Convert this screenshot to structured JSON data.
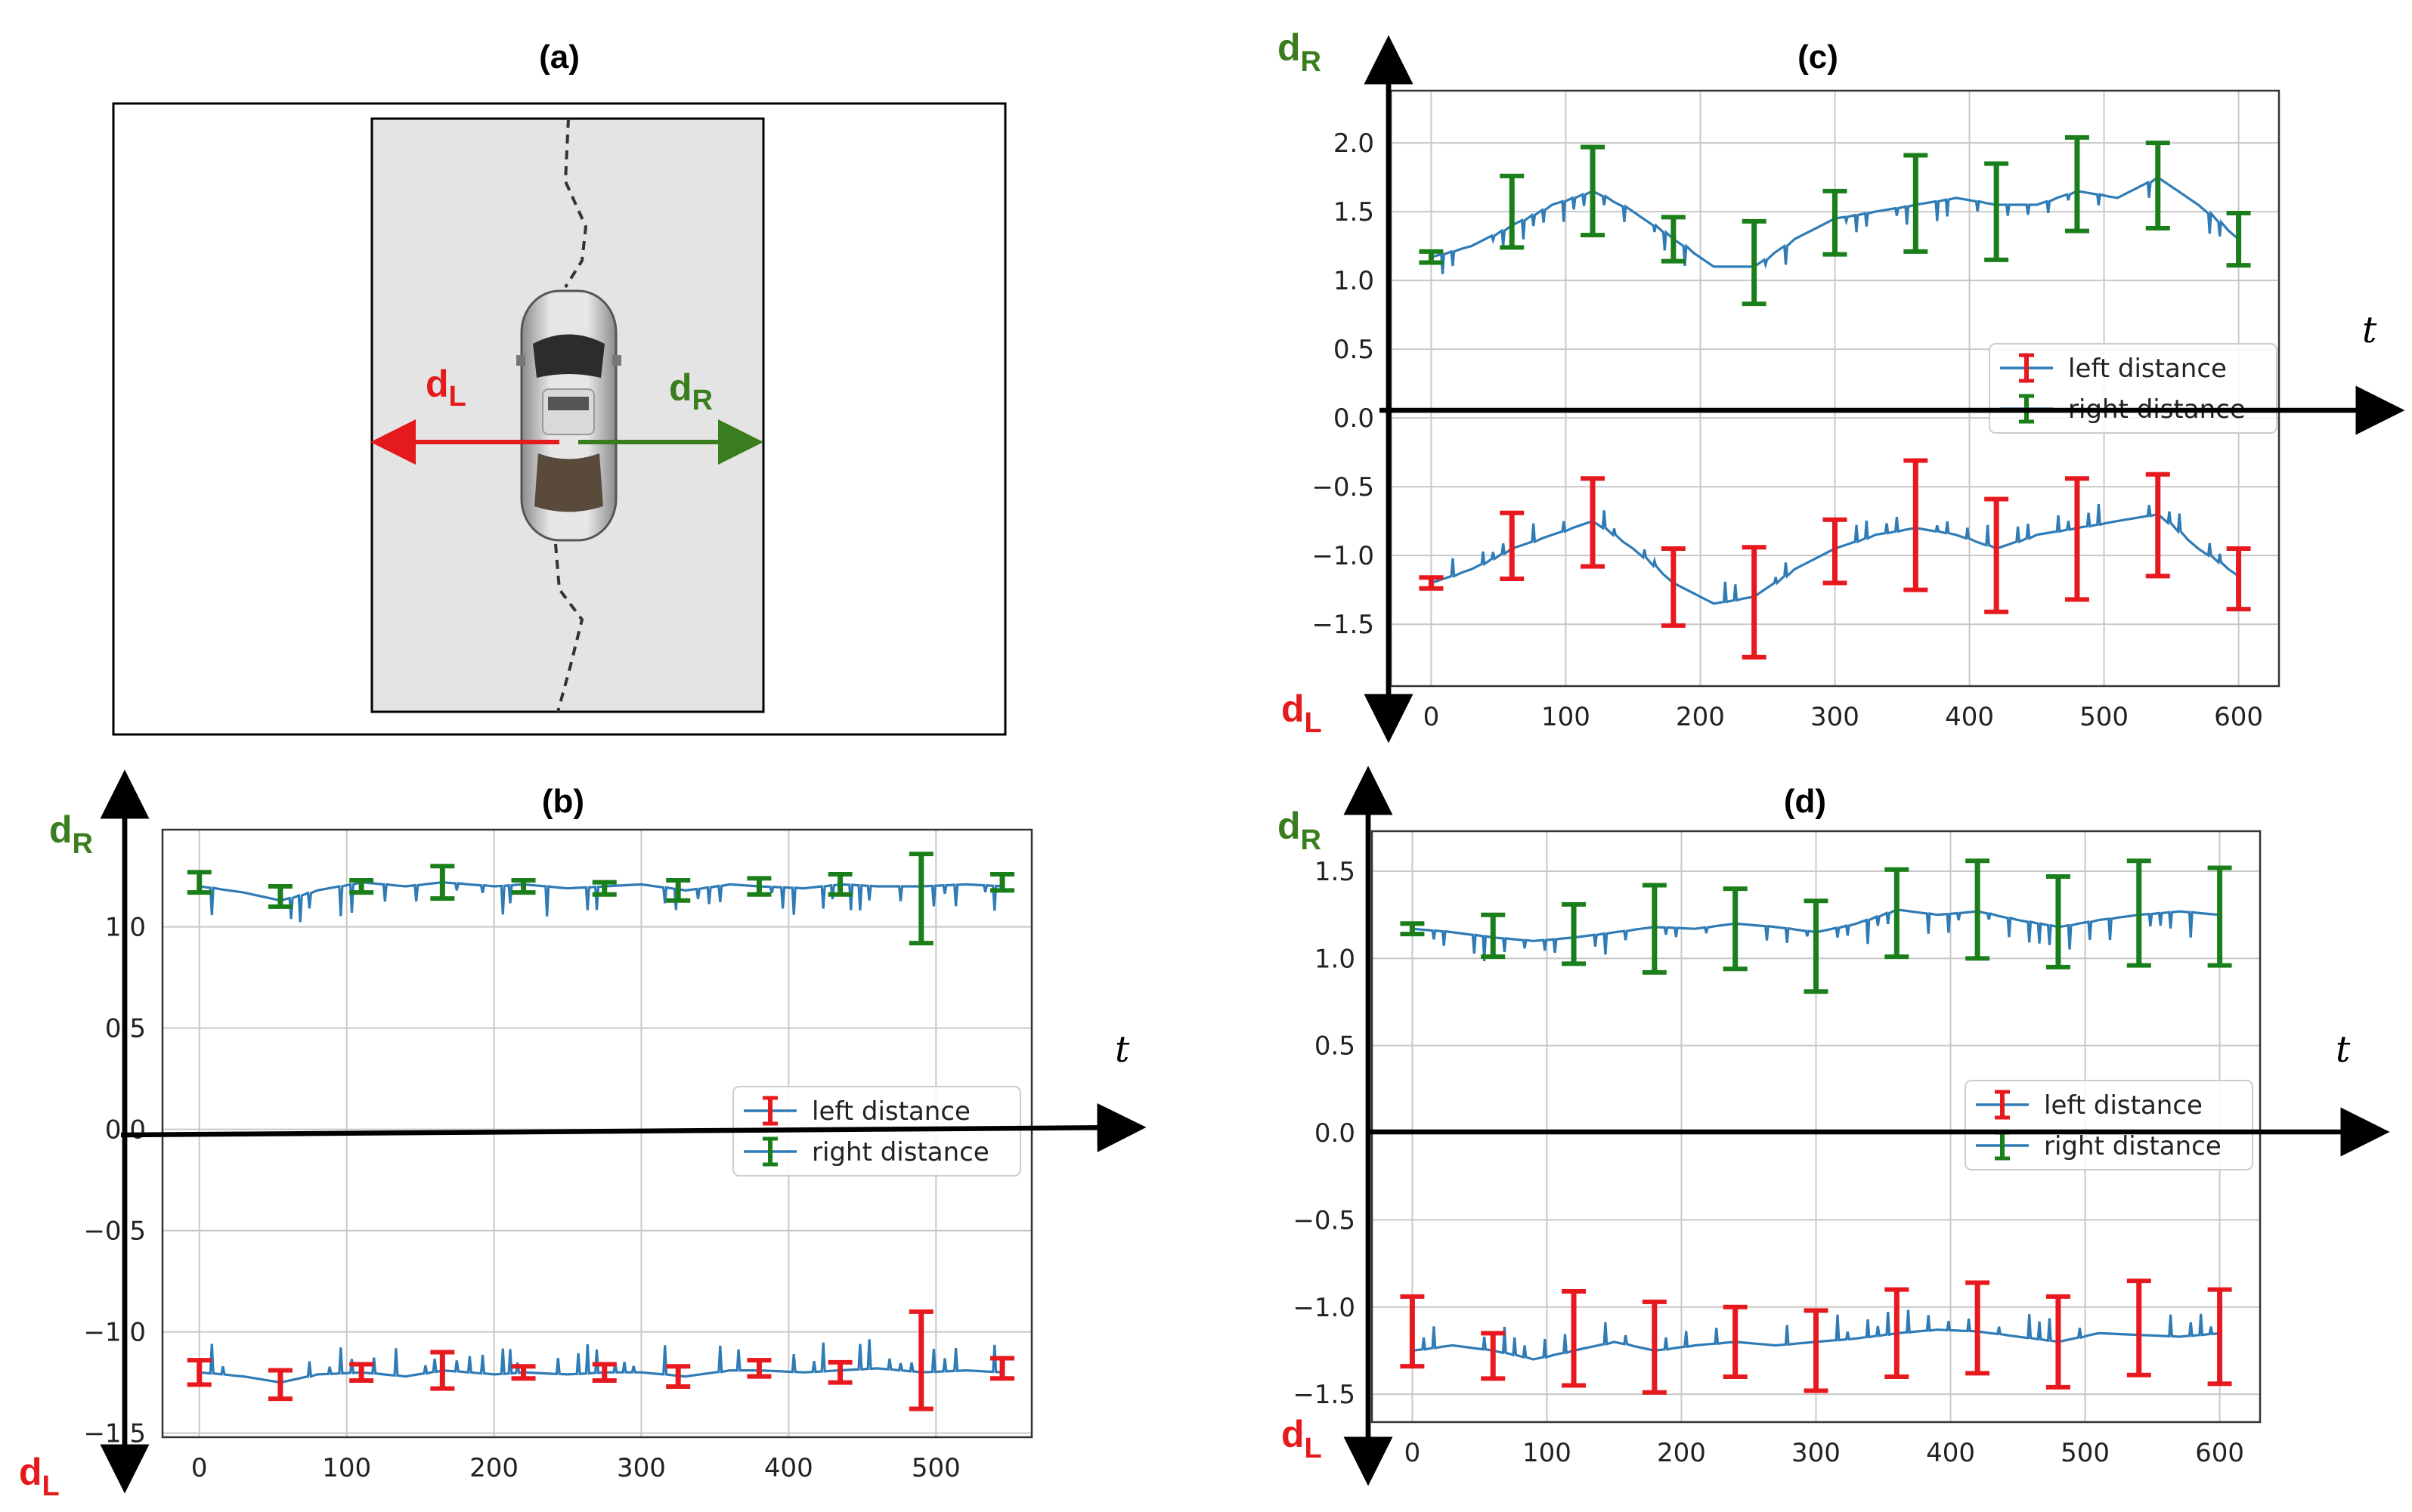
{
  "figure": {
    "panel_a": {
      "label": "(a)",
      "left_label": "d",
      "left_sub": "L",
      "right_label": "d",
      "right_sub": "R",
      "colors": {
        "left": "#e41a1c",
        "right": "#3a7d1e",
        "road": "#e4e4e4"
      }
    },
    "axis_labels": {
      "dR": "d",
      "dR_sub": "R",
      "dL": "d",
      "dL_sub": "L",
      "t": "t"
    },
    "colors": {
      "line": "#2f7bb6",
      "left_err": "#e8191e",
      "right_err": "#1a7f1a",
      "dR": "#3a7d1e",
      "dL": "#e41a1c"
    }
  },
  "chart_data": [
    {
      "id": "b",
      "title": "(b)",
      "type": "line",
      "xlim": [
        -25,
        565
      ],
      "ylim": [
        -1.52,
        1.48
      ],
      "xticks": [
        "0",
        "100",
        "200",
        "300",
        "400",
        "500"
      ],
      "yticks": [
        "1.0",
        "0.5",
        "0.0",
        "−0.5",
        "−1.0",
        "−1.5"
      ],
      "ytick_values": [
        1.0,
        0.5,
        0.0,
        -0.5,
        -1.0,
        -1.5
      ],
      "xtick_values": [
        0,
        100,
        200,
        300,
        400,
        500
      ],
      "legend": [
        "left distance",
        "right distance"
      ],
      "right_line": [
        [
          0,
          1.2
        ],
        [
          30,
          1.17
        ],
        [
          55,
          1.13
        ],
        [
          80,
          1.18
        ],
        [
          110,
          1.22
        ],
        [
          140,
          1.2
        ],
        [
          165,
          1.22
        ],
        [
          200,
          1.2
        ],
        [
          220,
          1.21
        ],
        [
          250,
          1.19
        ],
        [
          275,
          1.2
        ],
        [
          300,
          1.21
        ],
        [
          330,
          1.18
        ],
        [
          360,
          1.21
        ],
        [
          380,
          1.2
        ],
        [
          410,
          1.19
        ],
        [
          435,
          1.21
        ],
        [
          460,
          1.2
        ],
        [
          490,
          1.2
        ],
        [
          520,
          1.21
        ],
        [
          545,
          1.2
        ]
      ],
      "left_line": [
        [
          0,
          -1.2
        ],
        [
          30,
          -1.22
        ],
        [
          55,
          -1.25
        ],
        [
          80,
          -1.21
        ],
        [
          110,
          -1.2
        ],
        [
          140,
          -1.22
        ],
        [
          165,
          -1.19
        ],
        [
          200,
          -1.21
        ],
        [
          220,
          -1.2
        ],
        [
          250,
          -1.21
        ],
        [
          275,
          -1.2
        ],
        [
          300,
          -1.2
        ],
        [
          330,
          -1.22
        ],
        [
          360,
          -1.19
        ],
        [
          380,
          -1.19
        ],
        [
          410,
          -1.2
        ],
        [
          435,
          -1.19
        ],
        [
          460,
          -1.18
        ],
        [
          490,
          -1.2
        ],
        [
          520,
          -1.19
        ],
        [
          545,
          -1.2
        ]
      ],
      "right_err": [
        {
          "x": 0,
          "y": 1.22,
          "e": 0.05
        },
        {
          "x": 55,
          "y": 1.15,
          "e": 0.05
        },
        {
          "x": 110,
          "y": 1.2,
          "e": 0.03
        },
        {
          "x": 165,
          "y": 1.22,
          "e": 0.08
        },
        {
          "x": 220,
          "y": 1.2,
          "e": 0.03
        },
        {
          "x": 275,
          "y": 1.19,
          "e": 0.03
        },
        {
          "x": 325,
          "y": 1.18,
          "e": 0.05
        },
        {
          "x": 380,
          "y": 1.2,
          "e": 0.04
        },
        {
          "x": 435,
          "y": 1.21,
          "e": 0.05
        },
        {
          "x": 490,
          "y": 1.14,
          "e": 0.22
        },
        {
          "x": 545,
          "y": 1.22,
          "e": 0.04
        }
      ],
      "left_err": [
        {
          "x": 0,
          "y": -1.2,
          "e": 0.06
        },
        {
          "x": 55,
          "y": -1.26,
          "e": 0.07
        },
        {
          "x": 110,
          "y": -1.2,
          "e": 0.04
        },
        {
          "x": 165,
          "y": -1.19,
          "e": 0.09
        },
        {
          "x": 220,
          "y": -1.2,
          "e": 0.03
        },
        {
          "x": 275,
          "y": -1.2,
          "e": 0.04
        },
        {
          "x": 325,
          "y": -1.22,
          "e": 0.05
        },
        {
          "x": 380,
          "y": -1.18,
          "e": 0.04
        },
        {
          "x": 435,
          "y": -1.2,
          "e": 0.05
        },
        {
          "x": 490,
          "y": -1.14,
          "e": 0.24
        },
        {
          "x": 545,
          "y": -1.18,
          "e": 0.05
        }
      ]
    },
    {
      "id": "c",
      "title": "(c)",
      "type": "line",
      "xlim": [
        -30,
        630
      ],
      "ylim": [
        -1.95,
        2.38
      ],
      "xticks": [
        "0",
        "100",
        "200",
        "300",
        "400",
        "500",
        "600"
      ],
      "yticks": [
        "2.0",
        "1.5",
        "1.0",
        "0.5",
        "0.0",
        "−0.5",
        "−1.0",
        "−1.5"
      ],
      "ytick_values": [
        2.0,
        1.5,
        1.0,
        0.5,
        0.0,
        -0.5,
        -1.0,
        -1.5
      ],
      "xtick_values": [
        0,
        100,
        200,
        300,
        400,
        500,
        600
      ],
      "legend": [
        "left distance",
        "right distance"
      ],
      "right_line": [
        [
          0,
          1.17
        ],
        [
          30,
          1.25
        ],
        [
          60,
          1.4
        ],
        [
          90,
          1.55
        ],
        [
          120,
          1.65
        ],
        [
          150,
          1.5
        ],
        [
          180,
          1.3
        ],
        [
          210,
          1.1
        ],
        [
          240,
          1.1
        ],
        [
          270,
          1.3
        ],
        [
          300,
          1.45
        ],
        [
          330,
          1.5
        ],
        [
          360,
          1.55
        ],
        [
          390,
          1.6
        ],
        [
          420,
          1.55
        ],
        [
          450,
          1.55
        ],
        [
          480,
          1.65
        ],
        [
          510,
          1.6
        ],
        [
          540,
          1.75
        ],
        [
          570,
          1.55
        ],
        [
          600,
          1.3
        ]
      ],
      "left_line": [
        [
          0,
          -1.2
        ],
        [
          30,
          -1.1
        ],
        [
          60,
          -0.95
        ],
        [
          90,
          -0.85
        ],
        [
          120,
          -0.75
        ],
        [
          150,
          -0.95
        ],
        [
          180,
          -1.2
        ],
        [
          210,
          -1.35
        ],
        [
          240,
          -1.3
        ],
        [
          270,
          -1.1
        ],
        [
          300,
          -0.95
        ],
        [
          330,
          -0.85
        ],
        [
          360,
          -0.8
        ],
        [
          390,
          -0.85
        ],
        [
          420,
          -0.95
        ],
        [
          450,
          -0.85
        ],
        [
          480,
          -0.8
        ],
        [
          510,
          -0.75
        ],
        [
          540,
          -0.7
        ],
        [
          570,
          -0.95
        ],
        [
          600,
          -1.15
        ]
      ],
      "right_err": [
        {
          "x": 0,
          "y": 1.17,
          "e": 0.04
        },
        {
          "x": 60,
          "y": 1.5,
          "e": 0.26
        },
        {
          "x": 120,
          "y": 1.65,
          "e": 0.32
        },
        {
          "x": 180,
          "y": 1.3,
          "e": 0.16
        },
        {
          "x": 240,
          "y": 1.13,
          "e": 0.3
        },
        {
          "x": 300,
          "y": 1.42,
          "e": 0.23
        },
        {
          "x": 360,
          "y": 1.56,
          "e": 0.35
        },
        {
          "x": 420,
          "y": 1.5,
          "e": 0.35
        },
        {
          "x": 480,
          "y": 1.7,
          "e": 0.34
        },
        {
          "x": 540,
          "y": 1.69,
          "e": 0.31
        },
        {
          "x": 600,
          "y": 1.3,
          "e": 0.19
        }
      ],
      "left_err": [
        {
          "x": 0,
          "y": -1.2,
          "e": 0.04
        },
        {
          "x": 60,
          "y": -0.93,
          "e": 0.24
        },
        {
          "x": 120,
          "y": -0.76,
          "e": 0.32
        },
        {
          "x": 180,
          "y": -1.23,
          "e": 0.28
        },
        {
          "x": 240,
          "y": -1.34,
          "e": 0.4
        },
        {
          "x": 300,
          "y": -0.97,
          "e": 0.23
        },
        {
          "x": 360,
          "y": -0.78,
          "e": 0.47
        },
        {
          "x": 420,
          "y": -1.0,
          "e": 0.41
        },
        {
          "x": 480,
          "y": -0.88,
          "e": 0.44
        },
        {
          "x": 540,
          "y": -0.78,
          "e": 0.37
        },
        {
          "x": 600,
          "y": -1.17,
          "e": 0.22
        }
      ]
    },
    {
      "id": "d",
      "title": "(d)",
      "type": "line",
      "xlim": [
        -30,
        630
      ],
      "ylim": [
        -1.66,
        1.73
      ],
      "xticks": [
        "0",
        "100",
        "200",
        "300",
        "400",
        "500",
        "600"
      ],
      "yticks": [
        "1.5",
        "1.0",
        "0.5",
        "0.0",
        "−0.5",
        "−1.0",
        "−1.5"
      ],
      "ytick_values": [
        1.5,
        1.0,
        0.5,
        0.0,
        -0.5,
        -1.0,
        -1.5
      ],
      "xtick_values": [
        0,
        100,
        200,
        300,
        400,
        500,
        600
      ],
      "legend": [
        "left distance",
        "right distance"
      ],
      "right_line": [
        [
          0,
          1.17
        ],
        [
          30,
          1.15
        ],
        [
          60,
          1.12
        ],
        [
          90,
          1.1
        ],
        [
          120,
          1.12
        ],
        [
          150,
          1.15
        ],
        [
          180,
          1.18
        ],
        [
          210,
          1.17
        ],
        [
          240,
          1.2
        ],
        [
          270,
          1.18
        ],
        [
          300,
          1.15
        ],
        [
          330,
          1.2
        ],
        [
          360,
          1.28
        ],
        [
          390,
          1.25
        ],
        [
          420,
          1.27
        ],
        [
          450,
          1.22
        ],
        [
          480,
          1.18
        ],
        [
          510,
          1.22
        ],
        [
          540,
          1.25
        ],
        [
          570,
          1.27
        ],
        [
          600,
          1.25
        ]
      ],
      "left_line": [
        [
          0,
          -1.25
        ],
        [
          30,
          -1.22
        ],
        [
          60,
          -1.25
        ],
        [
          90,
          -1.3
        ],
        [
          120,
          -1.25
        ],
        [
          150,
          -1.2
        ],
        [
          180,
          -1.25
        ],
        [
          210,
          -1.22
        ],
        [
          240,
          -1.2
        ],
        [
          270,
          -1.22
        ],
        [
          300,
          -1.2
        ],
        [
          330,
          -1.18
        ],
        [
          360,
          -1.15
        ],
        [
          390,
          -1.13
        ],
        [
          420,
          -1.14
        ],
        [
          450,
          -1.17
        ],
        [
          480,
          -1.2
        ],
        [
          510,
          -1.15
        ],
        [
          540,
          -1.16
        ],
        [
          570,
          -1.17
        ],
        [
          600,
          -1.15
        ]
      ],
      "right_err": [
        {
          "x": 0,
          "y": 1.17,
          "e": 0.03
        },
        {
          "x": 60,
          "y": 1.13,
          "e": 0.12
        },
        {
          "x": 120,
          "y": 1.14,
          "e": 0.17
        },
        {
          "x": 180,
          "y": 1.17,
          "e": 0.25
        },
        {
          "x": 240,
          "y": 1.17,
          "e": 0.23
        },
        {
          "x": 300,
          "y": 1.07,
          "e": 0.26
        },
        {
          "x": 360,
          "y": 1.26,
          "e": 0.25
        },
        {
          "x": 420,
          "y": 1.28,
          "e": 0.28
        },
        {
          "x": 480,
          "y": 1.21,
          "e": 0.26
        },
        {
          "x": 540,
          "y": 1.26,
          "e": 0.3
        },
        {
          "x": 600,
          "y": 1.24,
          "e": 0.28
        }
      ],
      "left_err": [
        {
          "x": 0,
          "y": -1.14,
          "e": 0.2
        },
        {
          "x": 60,
          "y": -1.28,
          "e": 0.13
        },
        {
          "x": 120,
          "y": -1.18,
          "e": 0.27
        },
        {
          "x": 180,
          "y": -1.23,
          "e": 0.26
        },
        {
          "x": 240,
          "y": -1.2,
          "e": 0.2
        },
        {
          "x": 300,
          "y": -1.25,
          "e": 0.23
        },
        {
          "x": 360,
          "y": -1.15,
          "e": 0.25
        },
        {
          "x": 420,
          "y": -1.12,
          "e": 0.26
        },
        {
          "x": 480,
          "y": -1.2,
          "e": 0.26
        },
        {
          "x": 540,
          "y": -1.12,
          "e": 0.27
        },
        {
          "x": 600,
          "y": -1.17,
          "e": 0.27
        }
      ]
    }
  ]
}
